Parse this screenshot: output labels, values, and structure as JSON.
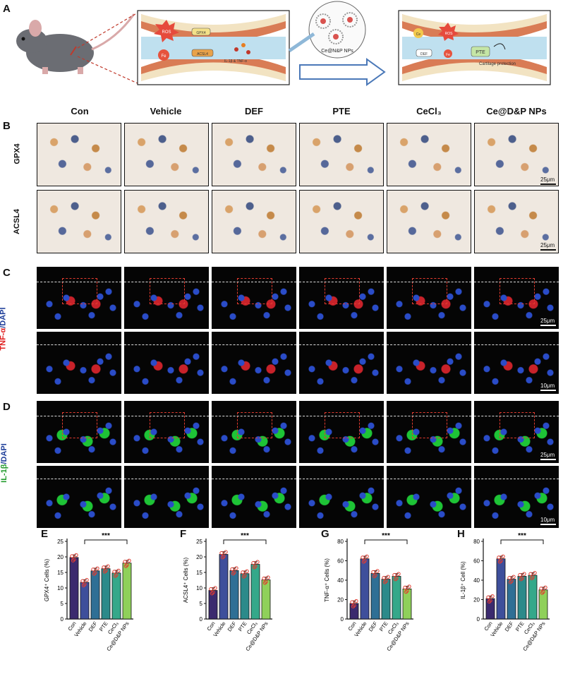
{
  "panels": {
    "A": "A",
    "B": "B",
    "C": "C",
    "D": "D",
    "E": "E",
    "F": "F",
    "G": "G",
    "H": "H"
  },
  "schematic": {
    "left_labels": {
      "ros": "ROS",
      "gpx4": "GPX4",
      "fe": "Fe",
      "acsl4": "ACSL4",
      "cytokines": "IL-1β & TNF-α"
    },
    "np_label": "Ce@N&P NPs",
    "right_labels": {
      "ce": "Ce",
      "ros": "ROS",
      "def": "DEF",
      "fe": "Fe",
      "pte": "PTE",
      "protection": "Cartilage protection"
    }
  },
  "groups": [
    "Con",
    "Vehicle",
    "DEF",
    "PTE",
    "CeCl₃",
    "Ce@D&P NPs"
  ],
  "row_labels": {
    "gpx4": "GPX4",
    "acsl4": "ACSL4",
    "tnf_a": "TNF-α",
    "tnf_dapi": "/DAPI",
    "il1b": "IL-1β",
    "il1b_dapi": "/DAPI"
  },
  "scalebars": {
    "ihc": "25μm",
    "fluo_main": "25μm",
    "fluo_zoom": "10μm"
  },
  "colors": {
    "con": "#3b2a6e",
    "vehicle": "#3e4f9b",
    "def": "#2f6f95",
    "pte": "#2c8a8a",
    "cecl3": "#35a88a",
    "nps": "#8fd05a",
    "dots": "#e23b2f"
  },
  "chart_data": [
    {
      "type": "bar",
      "panel": "E",
      "title": "",
      "ylabel": "GPX4⁺ Cells (%)",
      "xlabel": "",
      "categories": [
        "Con",
        "Vehicle",
        "DEF",
        "PTE",
        "CeCl₃",
        "Ce@D&P NPs"
      ],
      "values": [
        19.8,
        11.8,
        15.5,
        16.2,
        14.8,
        18.0
      ],
      "ylim": [
        0,
        25
      ],
      "yticks": [
        0,
        5,
        10,
        15,
        20,
        25
      ],
      "significance": "***",
      "sig_from": 1,
      "sig_to": 5
    },
    {
      "type": "bar",
      "panel": "F",
      "title": "",
      "ylabel": "ACSL4⁺ Cells (%)",
      "xlabel": "",
      "categories": [
        "Con",
        "Vehicle",
        "DEF",
        "PTE",
        "CeCl₃",
        "Ce@D&P NPs"
      ],
      "values": [
        9.2,
        20.8,
        15.6,
        14.6,
        17.6,
        12.6
      ],
      "ylim": [
        0,
        25
      ],
      "yticks": [
        0,
        5,
        10,
        15,
        20,
        25
      ],
      "significance": "***",
      "sig_from": 1,
      "sig_to": 5
    },
    {
      "type": "bar",
      "panel": "G",
      "title": "",
      "ylabel": "TNF-α⁺ Cells (%)",
      "xlabel": "",
      "categories": [
        "Con",
        "Vehicle",
        "DEF",
        "PTE",
        "CeCl₃",
        "Ce@D&P NPs"
      ],
      "values": [
        16,
        62,
        47,
        41,
        44,
        31
      ],
      "ylim": [
        0,
        80
      ],
      "yticks": [
        0,
        20,
        40,
        60,
        80
      ],
      "significance": "***",
      "sig_from": 1,
      "sig_to": 5
    },
    {
      "type": "bar",
      "panel": "H",
      "title": "",
      "ylabel": "IL-1β⁺ Cell (%)",
      "xlabel": "",
      "categories": [
        "Con",
        "Vehicle",
        "DEF",
        "PTE",
        "CeCl₃",
        "Ce@D&P NPs"
      ],
      "values": [
        21,
        62,
        41,
        44,
        45,
        30
      ],
      "ylim": [
        0,
        80
      ],
      "yticks": [
        0,
        20,
        40,
        60,
        80
      ],
      "significance": "***",
      "sig_from": 1,
      "sig_to": 5
    }
  ]
}
